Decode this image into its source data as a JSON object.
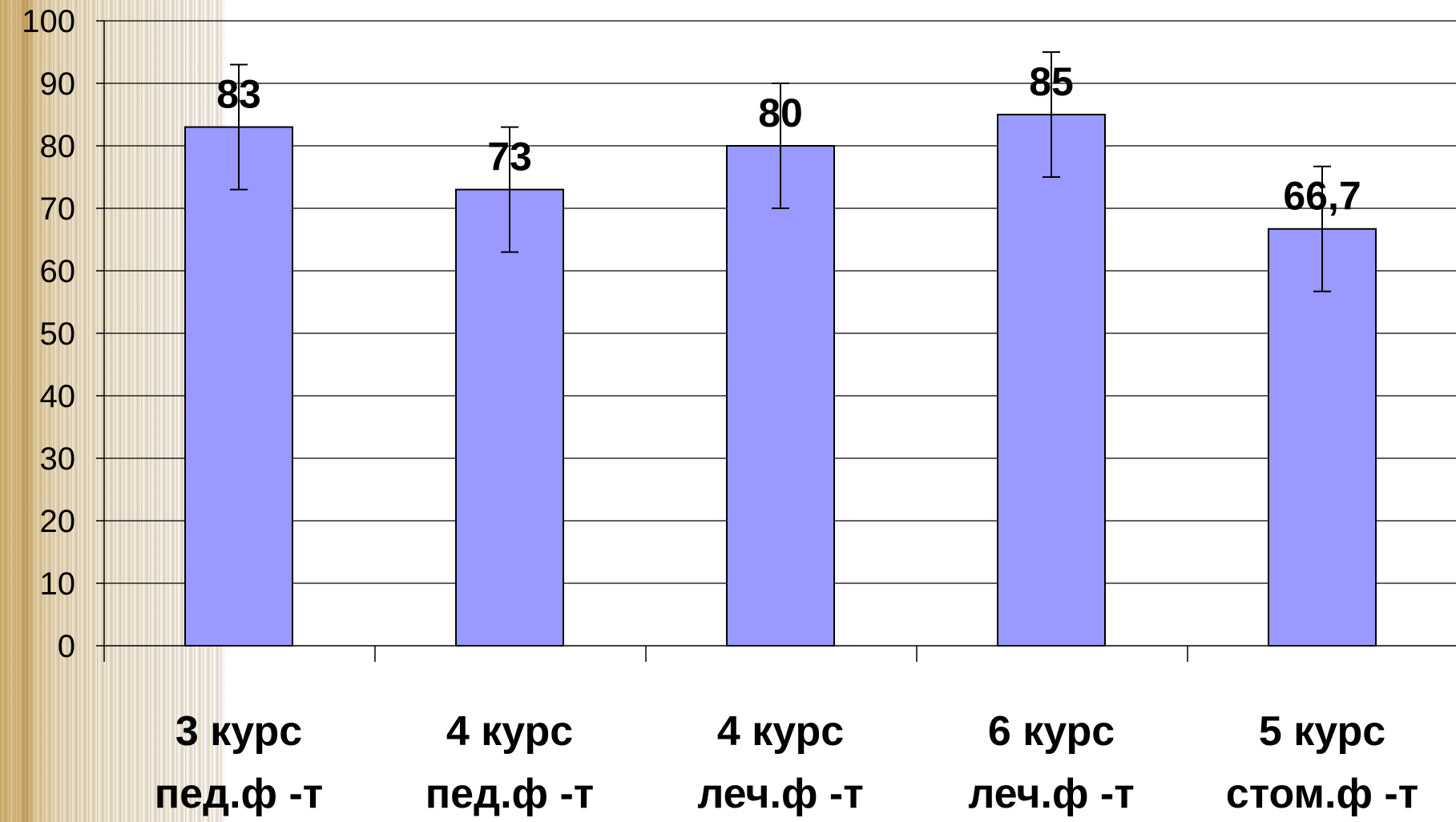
{
  "chart_data": {
    "type": "bar",
    "categories": [
      [
        "3 курс",
        "пед.ф -т"
      ],
      [
        "4 курс",
        "пед.ф -т"
      ],
      [
        "4 курс",
        "леч.ф -т"
      ],
      [
        "6 курс",
        "леч.ф -т"
      ],
      [
        "5 курс",
        "стом.ф -т"
      ]
    ],
    "values": [
      83,
      73,
      80,
      85,
      66.7
    ],
    "value_labels": [
      "83",
      "73",
      "80",
      "85",
      "66,7"
    ],
    "error_bars": [
      10,
      10,
      10,
      10,
      10
    ],
    "ylim": [
      0,
      100
    ],
    "yticks": [
      0,
      10,
      20,
      30,
      40,
      50,
      60,
      70,
      80,
      90,
      100
    ],
    "title": "",
    "xlabel": "",
    "ylabel": "",
    "grid": true,
    "legend": "none",
    "colors": {
      "bar_fill": "#9999ff",
      "bar_stroke": "#000000",
      "grid": "#000000",
      "background": "#ffffff"
    }
  }
}
